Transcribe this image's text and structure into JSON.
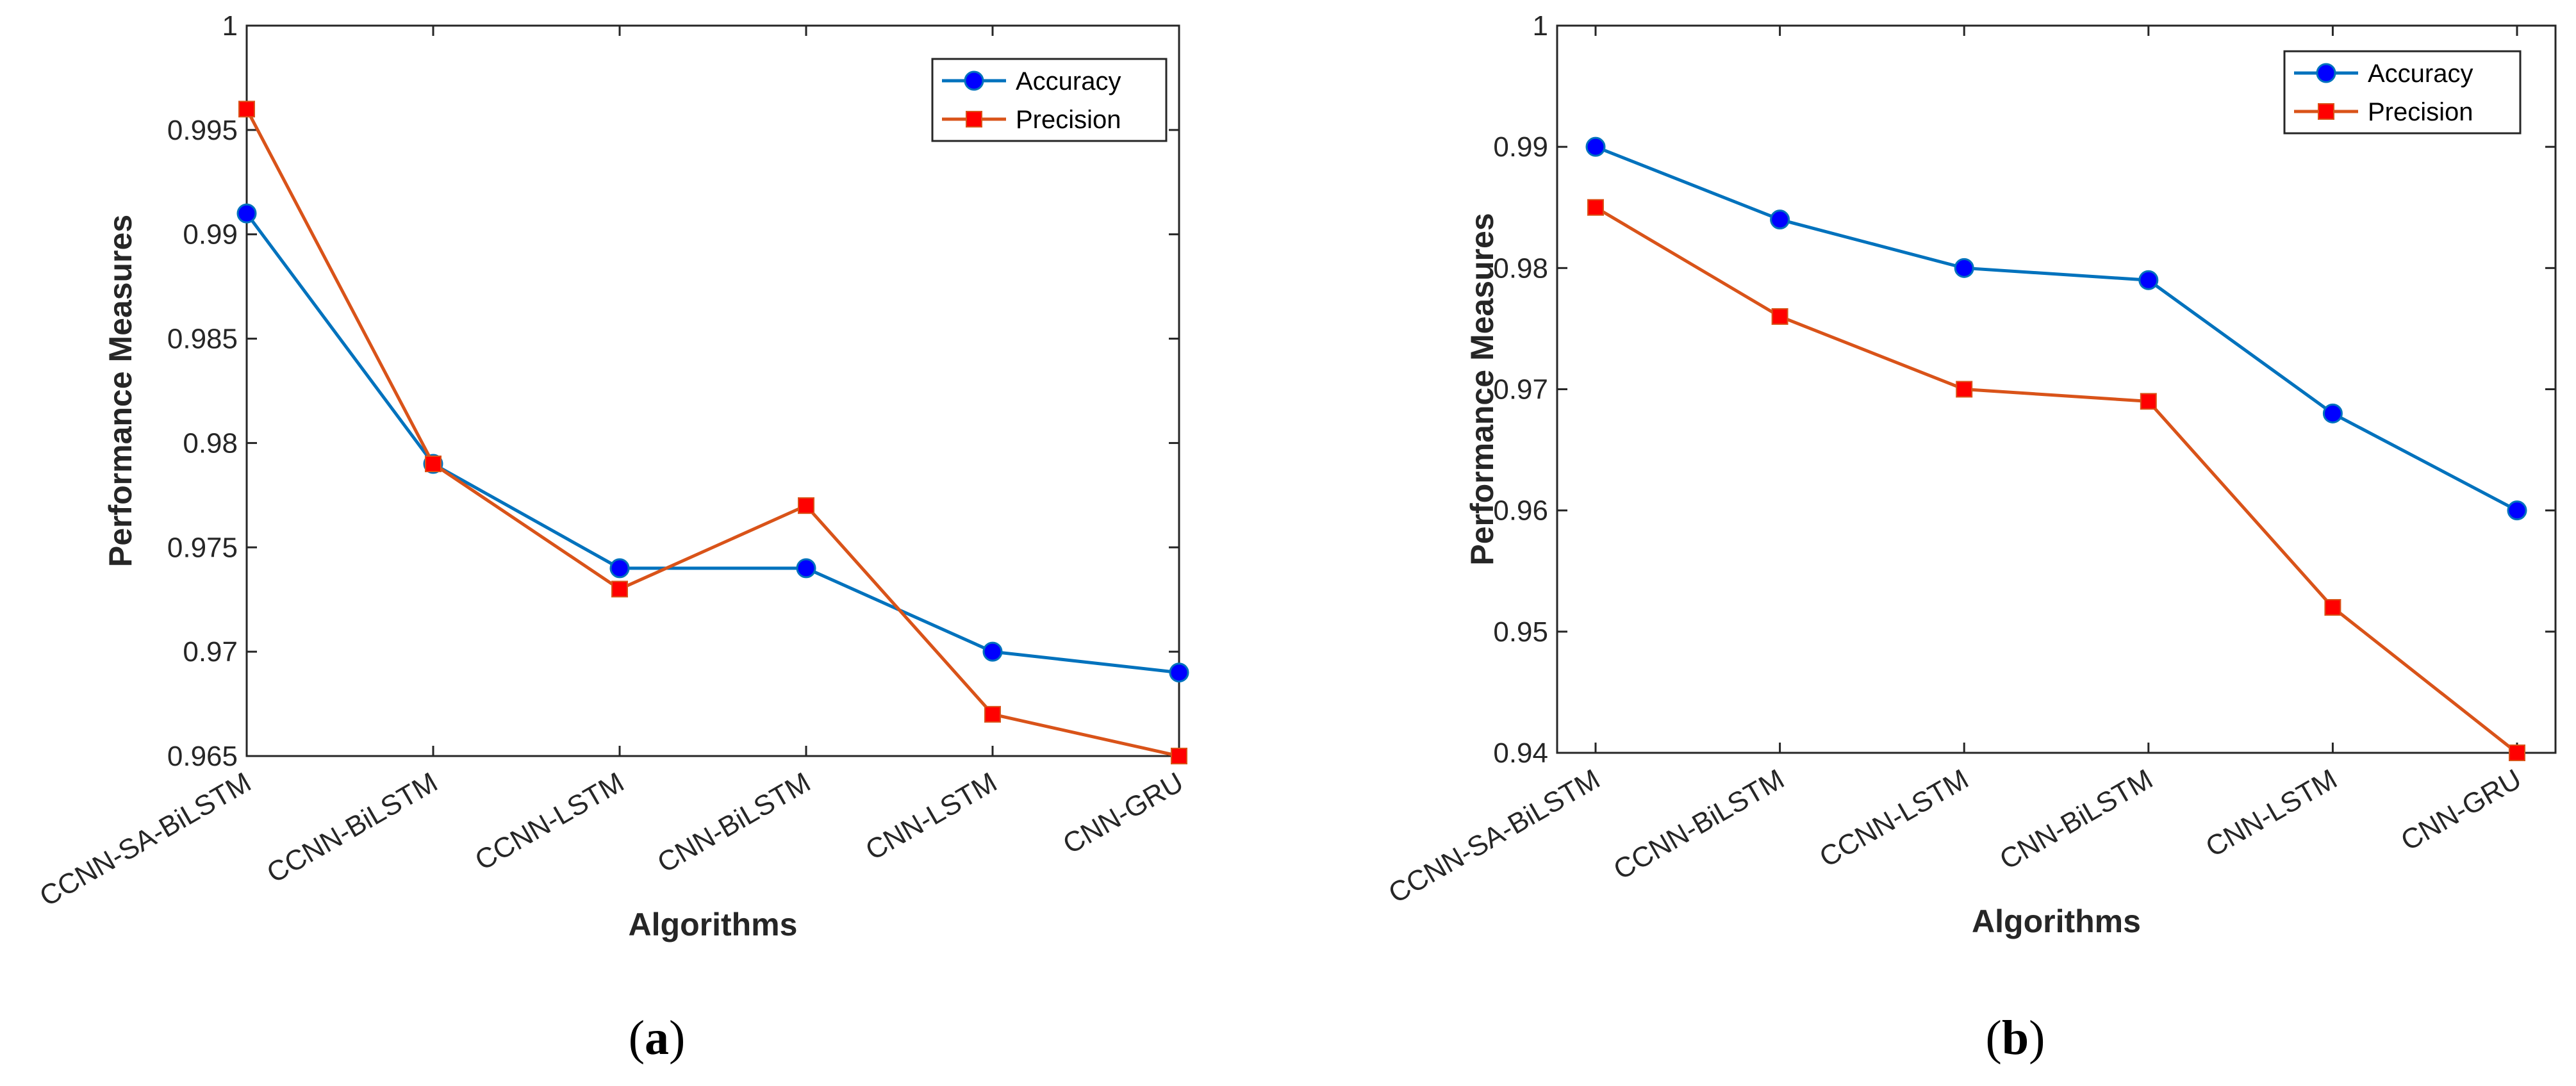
{
  "chart_data": [
    {
      "type": "line",
      "panel_label": "a",
      "categories": [
        "CCNN-SA-BiLSTM",
        "CCNN-BiLSTM",
        "CCNN-LSTM",
        "CNN-BiLSTM",
        "CNN-LSTM",
        "CNN-GRU"
      ],
      "series": [
        {
          "name": "Accuracy",
          "color": "#0072BD",
          "marker_color": "#0000FF",
          "marker": "circle",
          "values": [
            0.991,
            0.979,
            0.974,
            0.974,
            0.97,
            0.969
          ]
        },
        {
          "name": "Precision",
          "color": "#D95319",
          "marker_color": "#FF0000",
          "marker": "square",
          "values": [
            0.996,
            0.979,
            0.973,
            0.977,
            0.967,
            0.965
          ]
        }
      ],
      "xlabel": "Algorithms",
      "ylabel": "Performance Measures",
      "ylim": [
        0.965,
        1.0
      ],
      "yticks": [
        0.965,
        0.97,
        0.975,
        0.98,
        0.985,
        0.99,
        0.995,
        1
      ],
      "ytick_labels": [
        "0.965",
        "0.97",
        "0.975",
        "0.98",
        "0.985",
        "0.99",
        "0.995",
        "1"
      ],
      "legend_position": "top-right",
      "grid": false
    },
    {
      "type": "line",
      "panel_label": "b",
      "categories": [
        "CCNN-SA-BiLSTM",
        "CCNN-BiLSTM",
        "CCNN-LSTM",
        "CNN-BiLSTM",
        "CNN-LSTM",
        "CNN-GRU"
      ],
      "series": [
        {
          "name": "Accuracy",
          "color": "#0072BD",
          "marker_color": "#0000FF",
          "marker": "circle",
          "values": [
            0.99,
            0.984,
            0.98,
            0.979,
            0.968,
            0.96
          ]
        },
        {
          "name": "Precision",
          "color": "#D95319",
          "marker_color": "#FF0000",
          "marker": "square",
          "values": [
            0.985,
            0.976,
            0.97,
            0.969,
            0.952,
            0.94
          ]
        }
      ],
      "xlabel": "Algorithms",
      "ylabel": "Performance Measures",
      "ylim": [
        0.94,
        1.0
      ],
      "yticks": [
        0.94,
        0.95,
        0.96,
        0.97,
        0.98,
        0.99,
        1
      ],
      "ytick_labels": [
        "0.94",
        "0.95",
        "0.96",
        "0.97",
        "0.98",
        "0.99",
        "1"
      ],
      "legend_position": "top-right",
      "grid": false
    }
  ]
}
